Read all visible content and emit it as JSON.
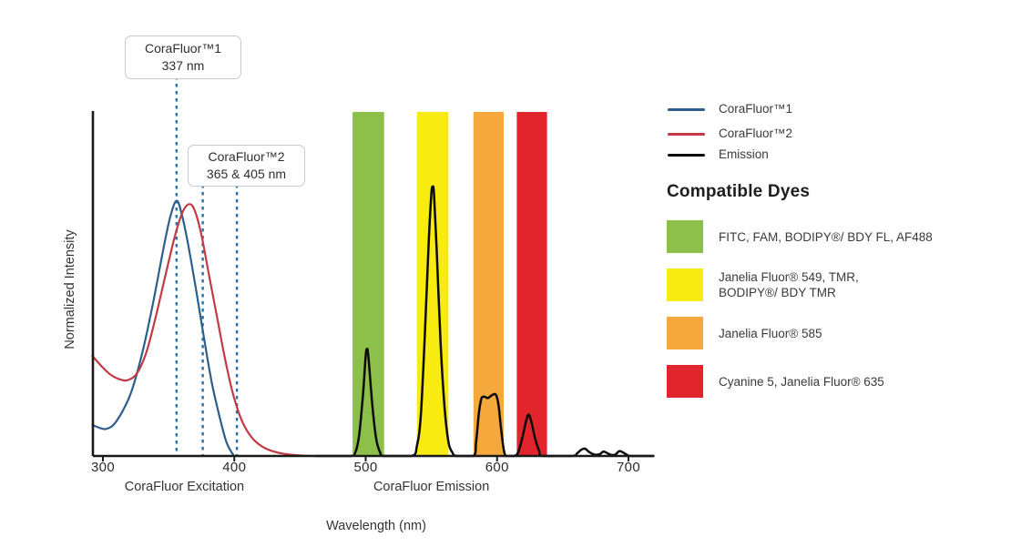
{
  "chart_data": {
    "type": "line",
    "title": "",
    "xlabel": "Wavelength (nm)",
    "ylabel": "Normalized Intensity",
    "x_ticks": [
      300,
      400,
      500,
      600,
      700
    ],
    "xlim_nm": [
      292,
      720
    ],
    "ylim": [
      0,
      1
    ],
    "grid": false,
    "x_axis_sections": [
      {
        "label": "CoraFluor Excitation",
        "center_nm": 362
      },
      {
        "label": "CoraFluor Emission",
        "center_nm": 550
      }
    ],
    "dash_color": "#2571AC",
    "annotations": [
      {
        "line1": "CoraFluor™1",
        "line2": "337 nm",
        "dash_lines_nm": [
          356
        ]
      },
      {
        "line1": "CoraFluor™2",
        "line2": "365 & 405 nm",
        "dash_lines_nm": [
          376,
          402
        ]
      }
    ],
    "bands": [
      {
        "name": "green-filter",
        "color": "#8CC04B",
        "nm": [
          490,
          514
        ]
      },
      {
        "name": "yellow-filter",
        "color": "#F7EB12",
        "nm": [
          539,
          563
        ]
      },
      {
        "name": "orange-filter",
        "color": "#F5A93C",
        "nm": [
          582,
          605
        ]
      },
      {
        "name": "red-filter",
        "color": "#E2242D",
        "nm": [
          615,
          638
        ]
      }
    ],
    "series": [
      {
        "id": "corafluor1-excitation-curve",
        "name": "CoraFluor™1",
        "color": "#2D5F8E",
        "points": [
          [
            292,
            0.09
          ],
          [
            297,
            0.082
          ],
          [
            302,
            0.078
          ],
          [
            308,
            0.09
          ],
          [
            315,
            0.13
          ],
          [
            322,
            0.19
          ],
          [
            330,
            0.3
          ],
          [
            338,
            0.44
          ],
          [
            345,
            0.58
          ],
          [
            351,
            0.69
          ],
          [
            356,
            0.74
          ],
          [
            360,
            0.7
          ],
          [
            365,
            0.61
          ],
          [
            371,
            0.48
          ],
          [
            377,
            0.34
          ],
          [
            383,
            0.21
          ],
          [
            389,
            0.11
          ],
          [
            394,
            0.04
          ],
          [
            398,
            0.01
          ],
          [
            400,
            0
          ]
        ]
      },
      {
        "id": "corafluor2-excitation-curve",
        "name": "CoraFluor™2",
        "color": "#C23B44",
        "points": [
          [
            292,
            0.29
          ],
          [
            299,
            0.26
          ],
          [
            306,
            0.235
          ],
          [
            313,
            0.222
          ],
          [
            319,
            0.22
          ],
          [
            326,
            0.24
          ],
          [
            333,
            0.3
          ],
          [
            340,
            0.4
          ],
          [
            348,
            0.53
          ],
          [
            355,
            0.64
          ],
          [
            361,
            0.71
          ],
          [
            366,
            0.73
          ],
          [
            370,
            0.71
          ],
          [
            375,
            0.64
          ],
          [
            381,
            0.52
          ],
          [
            387,
            0.4
          ],
          [
            393,
            0.28
          ],
          [
            399,
            0.18
          ],
          [
            406,
            0.1
          ],
          [
            413,
            0.055
          ],
          [
            421,
            0.028
          ],
          [
            430,
            0.013
          ],
          [
            440,
            0.005
          ],
          [
            452,
            0.001
          ],
          [
            462,
            0
          ]
        ]
      },
      {
        "id": "emission-curve",
        "name": "Emission",
        "color": "#0B0B0B",
        "points": [
          [
            462,
            0
          ],
          [
            488,
            0
          ],
          [
            492,
            0.01
          ],
          [
            495,
            0.06
          ],
          [
            498,
            0.18
          ],
          [
            500,
            0.29
          ],
          [
            501,
            0.31
          ],
          [
            502,
            0.29
          ],
          [
            505,
            0.15
          ],
          [
            508,
            0.05
          ],
          [
            511,
            0.01
          ],
          [
            514,
            0
          ],
          [
            535,
            0
          ],
          [
            539,
            0.03
          ],
          [
            542,
            0.12
          ],
          [
            545,
            0.35
          ],
          [
            548,
            0.62
          ],
          [
            550,
            0.76
          ],
          [
            551,
            0.78
          ],
          [
            552,
            0.76
          ],
          [
            554,
            0.6
          ],
          [
            557,
            0.33
          ],
          [
            560,
            0.14
          ],
          [
            563,
            0.04
          ],
          [
            566,
            0.01
          ],
          [
            569,
            0
          ],
          [
            582,
            0
          ],
          [
            584,
            0.04
          ],
          [
            586,
            0.12
          ],
          [
            588,
            0.165
          ],
          [
            590,
            0.172
          ],
          [
            593,
            0.168
          ],
          [
            596,
            0.176
          ],
          [
            599,
            0.178
          ],
          [
            601,
            0.15
          ],
          [
            603,
            0.08
          ],
          [
            605,
            0.02
          ],
          [
            607,
            0
          ],
          [
            613,
            0
          ],
          [
            616,
            0.01
          ],
          [
            619,
            0.05
          ],
          [
            622,
            0.1
          ],
          [
            624,
            0.12
          ],
          [
            626,
            0.1
          ],
          [
            629,
            0.05
          ],
          [
            632,
            0.015
          ],
          [
            635,
            0
          ],
          [
            657,
            0
          ],
          [
            661,
            0.008
          ],
          [
            664,
            0.018
          ],
          [
            667,
            0.021
          ],
          [
            670,
            0.012
          ],
          [
            674,
            0.004
          ],
          [
            678,
            0.005
          ],
          [
            681,
            0.013
          ],
          [
            684,
            0.008
          ],
          [
            687,
            0.003
          ],
          [
            690,
            0.004
          ],
          [
            693,
            0.014
          ],
          [
            696,
            0.01
          ],
          [
            699,
            0.003
          ],
          [
            702,
            0
          ],
          [
            719,
            0
          ]
        ]
      }
    ]
  },
  "legend": {
    "items": [
      {
        "label": "CoraFluor™1",
        "color": "#2D5F8E"
      },
      {
        "label": "CoraFluor™2",
        "color": "#C23B44"
      },
      {
        "label": "Emission",
        "color": "#0B0B0B"
      }
    ]
  },
  "compatible_dyes": {
    "heading": "Compatible Dyes",
    "items": [
      {
        "color": "#8CC04B",
        "lines": [
          "FITC, FAM, BODIPY®/ BDY FL, AF488"
        ]
      },
      {
        "color": "#F7EB12",
        "lines": [
          "Janelia Fluor® 549, TMR,",
          "BODIPY®/ BDY TMR"
        ]
      },
      {
        "color": "#F5A93C",
        "lines": [
          "Janelia Fluor® 585"
        ]
      },
      {
        "color": "#E2242D",
        "lines": [
          "Cyanine 5, Janelia Fluor® 635"
        ]
      }
    ]
  }
}
